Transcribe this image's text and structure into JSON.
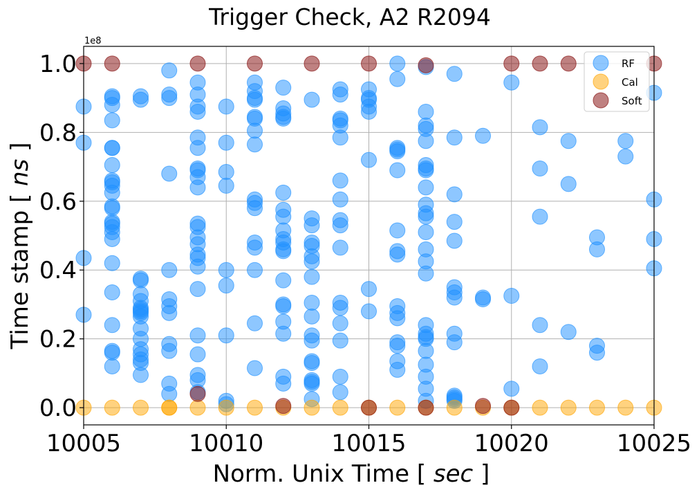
{
  "chart_data": {
    "type": "scatter",
    "title": "Trigger Check, A2 R2094",
    "xlabel_prefix": "Norm. Unix Time [ ",
    "xlabel_unit": "sec",
    "xlabel_suffix": " ]",
    "ylabel_prefix": "Time stamp [ ",
    "ylabel_unit": "ns",
    "ylabel_suffix": " ]",
    "y_offset_label": "1e8",
    "xlim": [
      10005,
      10025
    ],
    "ylim": [
      -0.05,
      1.05
    ],
    "x_ticks": [
      10005,
      10010,
      10015,
      10020,
      10025
    ],
    "x_tick_labels": [
      "10005",
      "10010",
      "10015",
      "10020",
      "10025"
    ],
    "y_ticks": [
      0.0,
      0.2,
      0.4,
      0.6,
      0.8,
      1.0
    ],
    "y_tick_labels": [
      "0.0",
      "0.2",
      "0.4",
      "0.6",
      "0.8",
      "1.0"
    ],
    "grid": true,
    "legend_position": "top-right",
    "series": [
      {
        "name": "RF",
        "color": "#1e90ff",
        "alpha": 0.5,
        "points": [
          [
            10005,
            0.875
          ],
          [
            10005,
            0.77
          ],
          [
            10005,
            0.435
          ],
          [
            10005,
            0.27
          ],
          [
            10006,
            0.905
          ],
          [
            10006,
            0.9
          ],
          [
            10006,
            0.88
          ],
          [
            10006,
            0.835
          ],
          [
            10006,
            0.755
          ],
          [
            10006,
            0.755
          ],
          [
            10006,
            0.705
          ],
          [
            10006,
            0.66
          ],
          [
            10006,
            0.655
          ],
          [
            10006,
            0.645
          ],
          [
            10006,
            0.625
          ],
          [
            10006,
            0.585
          ],
          [
            10006,
            0.58
          ],
          [
            10006,
            0.54
          ],
          [
            10006,
            0.535
          ],
          [
            10006,
            0.525
          ],
          [
            10006,
            0.51
          ],
          [
            10006,
            0.49
          ],
          [
            10006,
            0.42
          ],
          [
            10006,
            0.335
          ],
          [
            10006,
            0.24
          ],
          [
            10006,
            0.165
          ],
          [
            10006,
            0.16
          ],
          [
            10006,
            0.12
          ],
          [
            10007,
            0.905
          ],
          [
            10007,
            0.895
          ],
          [
            10007,
            0.375
          ],
          [
            10007,
            0.37
          ],
          [
            10007,
            0.33
          ],
          [
            10007,
            0.31
          ],
          [
            10007,
            0.29
          ],
          [
            10007,
            0.285
          ],
          [
            10007,
            0.28
          ],
          [
            10007,
            0.275
          ],
          [
            10007,
            0.265
          ],
          [
            10007,
            0.23
          ],
          [
            10007,
            0.2
          ],
          [
            10007,
            0.17
          ],
          [
            10007,
            0.155
          ],
          [
            10007,
            0.14
          ],
          [
            10007,
            0.13
          ],
          [
            10007,
            0.095
          ],
          [
            10008,
            0.98
          ],
          [
            10008,
            0.91
          ],
          [
            10008,
            0.9
          ],
          [
            10008,
            0.68
          ],
          [
            10008,
            0.4
          ],
          [
            10008,
            0.315
          ],
          [
            10008,
            0.295
          ],
          [
            10008,
            0.275
          ],
          [
            10008,
            0.185
          ],
          [
            10008,
            0.165
          ],
          [
            10008,
            0.07
          ],
          [
            10008,
            0.04
          ],
          [
            10009,
            0.945
          ],
          [
            10009,
            0.91
          ],
          [
            10009,
            0.875
          ],
          [
            10009,
            0.86
          ],
          [
            10009,
            0.785
          ],
          [
            10009,
            0.755
          ],
          [
            10009,
            0.695
          ],
          [
            10009,
            0.69
          ],
          [
            10009,
            0.67
          ],
          [
            10009,
            0.64
          ],
          [
            10009,
            0.535
          ],
          [
            10009,
            0.525
          ],
          [
            10009,
            0.495
          ],
          [
            10009,
            0.475
          ],
          [
            10009,
            0.445
          ],
          [
            10009,
            0.435
          ],
          [
            10009,
            0.41
          ],
          [
            10009,
            0.345
          ],
          [
            10009,
            0.21
          ],
          [
            10009,
            0.155
          ],
          [
            10009,
            0.095
          ],
          [
            10009,
            0.08
          ],
          [
            10009,
            0.045
          ],
          [
            10010,
            0.875
          ],
          [
            10010,
            0.77
          ],
          [
            10010,
            0.685
          ],
          [
            10010,
            0.645
          ],
          [
            10010,
            0.4
          ],
          [
            10010,
            0.355
          ],
          [
            10010,
            0.21
          ],
          [
            10010,
            0.02
          ],
          [
            10010,
            0.01
          ],
          [
            10011,
            0.945
          ],
          [
            10011,
            0.92
          ],
          [
            10011,
            0.9
          ],
          [
            10011,
            0.895
          ],
          [
            10011,
            0.845
          ],
          [
            10011,
            0.84
          ],
          [
            10011,
            0.805
          ],
          [
            10011,
            0.765
          ],
          [
            10011,
            0.605
          ],
          [
            10011,
            0.595
          ],
          [
            10011,
            0.58
          ],
          [
            10011,
            0.48
          ],
          [
            10011,
            0.465
          ],
          [
            10011,
            0.4
          ],
          [
            10011,
            0.245
          ],
          [
            10011,
            0.115
          ],
          [
            10012,
            0.93
          ],
          [
            10012,
            0.87
          ],
          [
            10012,
            0.855
          ],
          [
            10012,
            0.845
          ],
          [
            10012,
            0.84
          ],
          [
            10012,
            0.625
          ],
          [
            10012,
            0.575
          ],
          [
            10012,
            0.555
          ],
          [
            10012,
            0.515
          ],
          [
            10012,
            0.49
          ],
          [
            10012,
            0.48
          ],
          [
            10012,
            0.46
          ],
          [
            10012,
            0.455
          ],
          [
            10012,
            0.37
          ],
          [
            10012,
            0.3
          ],
          [
            10012,
            0.295
          ],
          [
            10012,
            0.25
          ],
          [
            10012,
            0.215
          ],
          [
            10012,
            0.09
          ],
          [
            10012,
            0.07
          ],
          [
            10013,
            0.895
          ],
          [
            10013,
            0.55
          ],
          [
            10013,
            0.53
          ],
          [
            10013,
            0.48
          ],
          [
            10013,
            0.47
          ],
          [
            10013,
            0.44
          ],
          [
            10013,
            0.425
          ],
          [
            10013,
            0.38
          ],
          [
            10013,
            0.305
          ],
          [
            10013,
            0.265
          ],
          [
            10013,
            0.21
          ],
          [
            10013,
            0.195
          ],
          [
            10013,
            0.135
          ],
          [
            10013,
            0.13
          ],
          [
            10013,
            0.08
          ],
          [
            10013,
            0.075
          ],
          [
            10013,
            0.07
          ],
          [
            10013,
            0.025
          ],
          [
            10014,
            0.925
          ],
          [
            10014,
            0.91
          ],
          [
            10014,
            0.84
          ],
          [
            10014,
            0.835
          ],
          [
            10014,
            0.82
          ],
          [
            10014,
            0.785
          ],
          [
            10014,
            0.66
          ],
          [
            10014,
            0.605
          ],
          [
            10014,
            0.545
          ],
          [
            10014,
            0.53
          ],
          [
            10014,
            0.465
          ],
          [
            10014,
            0.305
          ],
          [
            10014,
            0.29
          ],
          [
            10014,
            0.245
          ],
          [
            10014,
            0.195
          ],
          [
            10014,
            0.09
          ],
          [
            10014,
            0.045
          ],
          [
            10015,
            0.925
          ],
          [
            10015,
            0.9
          ],
          [
            10015,
            0.895
          ],
          [
            10015,
            0.875
          ],
          [
            10015,
            0.86
          ],
          [
            10015,
            0.72
          ],
          [
            10015,
            0.345
          ],
          [
            10015,
            0.28
          ],
          [
            10016,
            1.0
          ],
          [
            10016,
            0.955
          ],
          [
            10016,
            0.755
          ],
          [
            10016,
            0.75
          ],
          [
            10016,
            0.745
          ],
          [
            10016,
            0.69
          ],
          [
            10016,
            0.515
          ],
          [
            10016,
            0.455
          ],
          [
            10016,
            0.445
          ],
          [
            10016,
            0.295
          ],
          [
            10016,
            0.275
          ],
          [
            10016,
            0.26
          ],
          [
            10016,
            0.19
          ],
          [
            10016,
            0.18
          ],
          [
            10016,
            0.135
          ],
          [
            10016,
            0.11
          ],
          [
            10017,
            0.99
          ],
          [
            10017,
            0.86
          ],
          [
            10017,
            0.82
          ],
          [
            10017,
            0.81
          ],
          [
            10017,
            0.775
          ],
          [
            10017,
            0.705
          ],
          [
            10017,
            0.695
          ],
          [
            10017,
            0.69
          ],
          [
            10017,
            0.64
          ],
          [
            10017,
            0.59
          ],
          [
            10017,
            0.565
          ],
          [
            10017,
            0.555
          ],
          [
            10017,
            0.51
          ],
          [
            10017,
            0.46
          ],
          [
            10017,
            0.425
          ],
          [
            10017,
            0.39
          ],
          [
            10017,
            0.24
          ],
          [
            10017,
            0.215
          ],
          [
            10017,
            0.205
          ],
          [
            10017,
            0.2
          ],
          [
            10017,
            0.165
          ],
          [
            10017,
            0.125
          ],
          [
            10017,
            0.09
          ],
          [
            10017,
            0.055
          ],
          [
            10017,
            0.02
          ],
          [
            10018,
            0.97
          ],
          [
            10018,
            0.785
          ],
          [
            10018,
            0.62
          ],
          [
            10018,
            0.54
          ],
          [
            10018,
            0.485
          ],
          [
            10018,
            0.35
          ],
          [
            10018,
            0.335
          ],
          [
            10018,
            0.32
          ],
          [
            10018,
            0.215
          ],
          [
            10018,
            0.19
          ],
          [
            10018,
            0.035
          ],
          [
            10018,
            0.03
          ],
          [
            10018,
            0.025
          ],
          [
            10018,
            0.02
          ],
          [
            10019,
            0.79
          ],
          [
            10019,
            0.32
          ],
          [
            10019,
            0.315
          ],
          [
            10020,
            0.945
          ],
          [
            10020,
            0.325
          ],
          [
            10020,
            0.055
          ],
          [
            10021,
            0.815
          ],
          [
            10021,
            0.695
          ],
          [
            10021,
            0.555
          ],
          [
            10021,
            0.24
          ],
          [
            10021,
            0.12
          ],
          [
            10022,
            0.775
          ],
          [
            10022,
            0.65
          ],
          [
            10022,
            0.22
          ],
          [
            10023,
            0.495
          ],
          [
            10023,
            0.46
          ],
          [
            10023,
            0.18
          ],
          [
            10023,
            0.16
          ],
          [
            10024,
            0.775
          ],
          [
            10024,
            0.73
          ],
          [
            10025,
            0.915
          ],
          [
            10025,
            0.605
          ],
          [
            10025,
            0.49
          ],
          [
            10025,
            0.405
          ]
        ]
      },
      {
        "name": "Cal",
        "color": "#ffa500",
        "alpha": 0.5,
        "points": [
          [
            10005,
            0.0
          ],
          [
            10006,
            0.0
          ],
          [
            10007,
            0.0
          ],
          [
            10008,
            0.0
          ],
          [
            10008,
            0.0
          ],
          [
            10009,
            0.0
          ],
          [
            10010,
            0.0
          ],
          [
            10011,
            0.0
          ],
          [
            10012,
            0.0
          ],
          [
            10013,
            0.0
          ],
          [
            10014,
            0.0
          ],
          [
            10015,
            0.0
          ],
          [
            10016,
            0.0
          ],
          [
            10017,
            0.0
          ],
          [
            10018,
            0.0
          ],
          [
            10019,
            0.0
          ],
          [
            10020,
            0.0
          ],
          [
            10021,
            0.0
          ],
          [
            10022,
            0.0
          ],
          [
            10023,
            0.0
          ],
          [
            10024,
            0.0
          ],
          [
            10025,
            0.0
          ]
        ]
      },
      {
        "name": "Soft",
        "color": "#8b1a1a",
        "alpha": 0.55,
        "points": [
          [
            10005,
            1.0
          ],
          [
            10006,
            1.0
          ],
          [
            10009,
            1.0
          ],
          [
            10011,
            1.0
          ],
          [
            10013,
            1.0
          ],
          [
            10015,
            1.0
          ],
          [
            10017,
            0.995
          ],
          [
            10020,
            1.0
          ],
          [
            10021,
            1.0
          ],
          [
            10022,
            1.0
          ],
          [
            10025,
            1.0
          ],
          [
            10009,
            0.04
          ],
          [
            10012,
            0.005
          ],
          [
            10015,
            0.0
          ],
          [
            10017,
            0.0
          ],
          [
            10019,
            0.005
          ],
          [
            10020,
            0.0
          ]
        ]
      }
    ]
  }
}
